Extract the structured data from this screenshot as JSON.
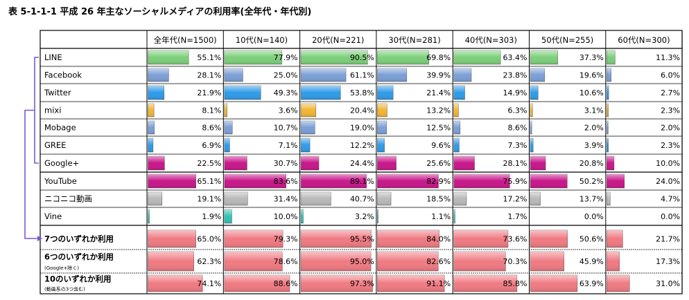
{
  "title": "表 5-1-1-1 平成 26 年主なソーシャルメディアの利用率(全年代・年代別)",
  "chart_data": {
    "type": "table",
    "title": "表 5-1-1-1 平成 26 年主なソーシャルメディアの利用率(全年代・年代別)",
    "columns": [
      "全年代(N=1500)",
      "10代(N=140)",
      "20代(N=221)",
      "30代(N=281)",
      "40代(N=303)",
      "50代(N=255)",
      "60代(N=300)"
    ],
    "rows": [
      {
        "label": "LINE",
        "values": [
          55.1,
          77.9,
          90.5,
          69.8,
          63.4,
          37.3,
          11.3
        ],
        "color": "#7ccf7a"
      },
      {
        "label": "Facebook",
        "values": [
          28.1,
          25.0,
          61.1,
          39.9,
          23.8,
          19.6,
          6.0
        ],
        "color": "#7b9fd6"
      },
      {
        "label": "Twitter",
        "values": [
          21.9,
          49.3,
          53.8,
          21.4,
          14.9,
          10.6,
          2.7
        ],
        "color": "#2f9be8"
      },
      {
        "label": "mixi",
        "values": [
          8.1,
          3.6,
          20.4,
          13.2,
          6.3,
          3.1,
          2.3
        ],
        "color": "#f2b531"
      },
      {
        "label": "Mobage",
        "values": [
          8.6,
          10.7,
          19.0,
          12.5,
          8.6,
          2.0,
          2.0
        ],
        "color": "#7b9fd6"
      },
      {
        "label": "GREE",
        "values": [
          6.9,
          7.1,
          12.2,
          9.6,
          7.3,
          3.9,
          2.3
        ],
        "color": "#2f9be8"
      },
      {
        "label": "Google+",
        "values": [
          22.5,
          30.7,
          24.4,
          25.6,
          28.1,
          20.8,
          10.0
        ],
        "color": "#c8168a"
      },
      {
        "label": "YouTube",
        "values": [
          65.1,
          83.6,
          89.1,
          82.9,
          75.9,
          50.2,
          24.0
        ],
        "color": "#c8168a"
      },
      {
        "label": "ニコニコ動画",
        "values": [
          19.1,
          31.4,
          40.7,
          18.5,
          17.2,
          13.7,
          4.7
        ],
        "color": "#b9b9b9"
      },
      {
        "label": "Vine",
        "values": [
          1.9,
          10.0,
          3.2,
          1.1,
          1.7,
          0.0,
          0.0
        ],
        "color": "#2ec4b6"
      },
      {
        "label": "7つのいずれか利用",
        "sublabel": "",
        "values": [
          65.0,
          79.3,
          95.5,
          84.0,
          73.6,
          50.6,
          21.7
        ],
        "color": "#f07a82"
      },
      {
        "label": "6つのいずれか利用",
        "sublabel": "(Google+除く)",
        "values": [
          62.3,
          78.6,
          95.0,
          82.6,
          70.3,
          45.9,
          17.3
        ],
        "color": "#f07a82"
      },
      {
        "label": "10のいずれか利用",
        "sublabel": "(動画系の3つ含む)",
        "values": [
          74.1,
          88.6,
          97.3,
          91.1,
          85.8,
          63.9,
          31.0
        ],
        "color": "#f07a82"
      }
    ],
    "value_format": "one-decimal percent",
    "unit": "%"
  }
}
